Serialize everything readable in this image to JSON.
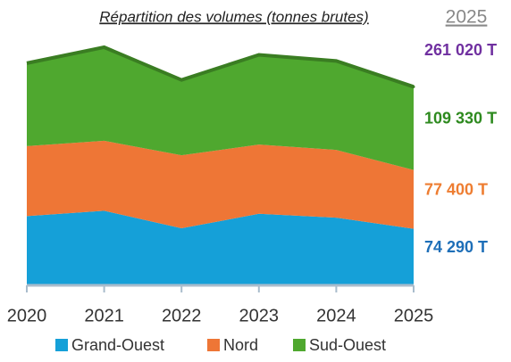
{
  "chart_data": {
    "type": "stacked_area",
    "title": "Répartition des volumes (tonnes brutes)",
    "year_label": "2025",
    "categories": [
      "2020",
      "2021",
      "2022",
      "2023",
      "2024",
      "2025"
    ],
    "series": [
      {
        "name": "Grand-Ouest",
        "color": "#15a0d8",
        "label_color": "#1e6fb8",
        "values": [
          91000,
          98000,
          75000,
          94000,
          89000,
          74290
        ],
        "value_labels": [
          null,
          null,
          null,
          null,
          null,
          "74 290 T"
        ]
      },
      {
        "name": "Nord",
        "color": "#ee7636",
        "label_color": "#ee7d31",
        "values": [
          92000,
          92000,
          96000,
          91000,
          89000,
          77400
        ],
        "value_labels": [
          null,
          null,
          null,
          null,
          null,
          "77 400 T"
        ]
      },
      {
        "name": "Sud-Ouest",
        "color": "#4fa82f",
        "label_color": "#2e8a1f",
        "values": [
          109000,
          123000,
          99000,
          118000,
          117000,
          109330
        ],
        "value_labels": [
          null,
          null,
          null,
          null,
          null,
          "109 330 T"
        ]
      }
    ],
    "total": {
      "value": 261020,
      "label": "261 020 T",
      "color": "#7030a0"
    },
    "outline_color": "#3a7d22",
    "ylim": [
      0,
      320000
    ]
  }
}
